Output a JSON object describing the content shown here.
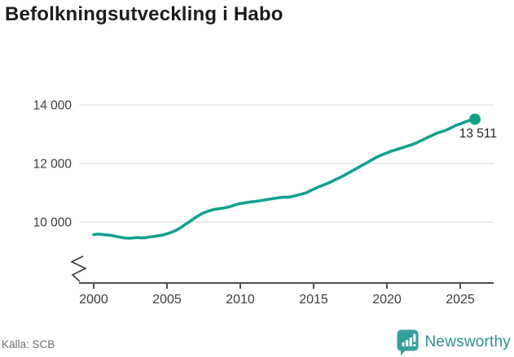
{
  "title": "Befolkningsutveckling i Habo",
  "source": "Källa: SCB",
  "branding": {
    "name": "Newsworthy",
    "logo_color": "#35a09b",
    "text_color": "#2e8f8c"
  },
  "chart_data": {
    "type": "line",
    "title": "Befolkningsutveckling i Habo",
    "xlabel": "",
    "ylabel": "",
    "grid": "horizontal-only",
    "axis_break_bottom_left": true,
    "line_color": "#14a18e",
    "gridline_color": "#d8d8d8",
    "axis_color": "#4d4d4d",
    "tick_label_color": "#3d3d3d",
    "end_label_color": "#1f1f1f",
    "x_ticks": [
      2000,
      2005,
      2010,
      2015,
      2020,
      2025
    ],
    "y_ticks": [
      {
        "label": "10 000",
        "value": 10000
      },
      {
        "label": "12 000",
        "value": 12000
      },
      {
        "label": "14 000",
        "value": 14000
      }
    ],
    "x_range": [
      1999.0,
      2027.3
    ],
    "y_range_displayed": [
      9300,
      14300
    ],
    "start_year": 2000,
    "interval_years": 0.25,
    "end_label": "13 511",
    "end_value": 13511,
    "values": [
      9570,
      9585,
      9580,
      9565,
      9555,
      9540,
      9510,
      9485,
      9465,
      9450,
      9445,
      9460,
      9470,
      9455,
      9465,
      9485,
      9500,
      9520,
      9535,
      9560,
      9600,
      9640,
      9690,
      9750,
      9830,
      9920,
      10000,
      10090,
      10170,
      10250,
      10310,
      10360,
      10400,
      10430,
      10450,
      10470,
      10490,
      10520,
      10560,
      10600,
      10630,
      10650,
      10670,
      10690,
      10700,
      10720,
      10740,
      10760,
      10780,
      10800,
      10820,
      10840,
      10850,
      10845,
      10870,
      10900,
      10930,
      10960,
      11000,
      11060,
      11120,
      11180,
      11230,
      11280,
      11330,
      11390,
      11450,
      11510,
      11570,
      11640,
      11710,
      11780,
      11850,
      11920,
      11990,
      12060,
      12130,
      12200,
      12260,
      12310,
      12360,
      12410,
      12450,
      12490,
      12530,
      12570,
      12610,
      12650,
      12700,
      12760,
      12820,
      12880,
      12940,
      13000,
      13050,
      13090,
      13130,
      13190,
      13250,
      13310,
      13350,
      13400,
      13450,
      13480,
      13511
    ]
  }
}
